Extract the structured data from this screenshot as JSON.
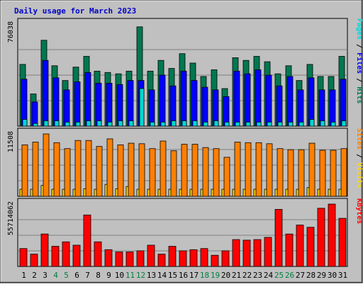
{
  "title": "Daily usage for March 2023",
  "colors": {
    "frame": "#c0c0c0",
    "title": "#0000cc",
    "hits": "#007850",
    "files": "#0000ff",
    "pages": "#00d8d8",
    "visits": "#ffd800",
    "sites": "#ff8000",
    "kbytes": "#ff0000",
    "weekend_day": "#008040",
    "weekday": "#000000"
  },
  "chart_data": [
    {
      "type": "bar",
      "id": "hits-files-pages",
      "ylim": [
        0,
        76038
      ],
      "max_label": "76038",
      "side_legend": [
        "Pages",
        "Files",
        "Hits"
      ],
      "series": [
        {
          "name": "Hits",
          "values": [
            46000,
            24000,
            64000,
            45000,
            34000,
            44000,
            52000,
            41000,
            40000,
            39000,
            41000,
            74000,
            41000,
            49000,
            43000,
            54000,
            47000,
            37000,
            42000,
            28000,
            51000,
            49000,
            52000,
            48000,
            39000,
            45000,
            34000,
            46000,
            37000,
            37000,
            52000
          ]
        },
        {
          "name": "Files",
          "values": [
            35000,
            18000,
            49000,
            36000,
            27000,
            33000,
            40000,
            32000,
            32000,
            31000,
            34000,
            34000,
            27000,
            38000,
            30000,
            41000,
            34000,
            29000,
            27000,
            22000,
            41000,
            39000,
            42000,
            38000,
            30000,
            37000,
            27000,
            36000,
            27000,
            27000,
            35000
          ]
        },
        {
          "name": "Pages",
          "values": [
            5000,
            2000,
            4000,
            4000,
            3000,
            3000,
            4000,
            4000,
            3000,
            4000,
            4000,
            28000,
            3000,
            3000,
            4000,
            4000,
            4000,
            3000,
            4000,
            3000,
            3000,
            3000,
            3000,
            3000,
            3000,
            3000,
            3000,
            5000,
            4000,
            3000,
            4000
          ]
        }
      ]
    },
    {
      "type": "bar",
      "id": "visits-sites",
      "ylim": [
        0,
        11508
      ],
      "max_label": "11508",
      "side_legend": [
        "Sites",
        "Visits"
      ],
      "series": [
        {
          "name": "Visits",
          "values": [
            1300,
            1300,
            2000,
            1300,
            1300,
            1300,
            1400,
            1300,
            2200,
            1400,
            1800,
            1300,
            1300,
            1300,
            1300,
            1300,
            1300,
            1300,
            1300,
            1300,
            1300,
            1300,
            1300,
            1300,
            1300,
            1300,
            1300,
            1600,
            1300,
            1300,
            1300
          ]
        },
        {
          "name": "Sites",
          "values": [
            9500,
            10000,
            11508,
            9900,
            8800,
            10300,
            10300,
            9200,
            10600,
            9500,
            9800,
            9700,
            8800,
            10200,
            8400,
            9600,
            9600,
            9000,
            8800,
            7200,
            10000,
            9900,
            9900,
            9700,
            8800,
            8600,
            8600,
            9800,
            8500,
            8500,
            8800
          ]
        }
      ]
    },
    {
      "type": "bar",
      "id": "kbytes",
      "ylim": [
        0,
        55714062
      ],
      "max_label": "55714062",
      "side_legend": [
        "KBytes"
      ],
      "series": [
        {
          "name": "KBytes",
          "values": [
            16000000,
            11000000,
            29000000,
            18000000,
            22000000,
            19000000,
            46000000,
            22000000,
            15000000,
            13000000,
            13000000,
            14000000,
            19000000,
            11000000,
            18000000,
            14000000,
            15000000,
            16000000,
            10000000,
            14000000,
            24000000,
            23500000,
            24000000,
            26000000,
            51000000,
            29000000,
            37000000,
            35000000,
            52000000,
            55714062,
            43000000
          ]
        }
      ]
    }
  ],
  "days": [
    "1",
    "2",
    "3",
    "4",
    "5",
    "6",
    "7",
    "8",
    "9",
    "10",
    "11",
    "12",
    "13",
    "14",
    "15",
    "16",
    "17",
    "18",
    "19",
    "20",
    "21",
    "22",
    "23",
    "24",
    "25",
    "26",
    "27",
    "28",
    "29",
    "30",
    "31"
  ],
  "weekend_days": [
    "4",
    "5",
    "11",
    "12",
    "18",
    "19",
    "25",
    "26"
  ]
}
